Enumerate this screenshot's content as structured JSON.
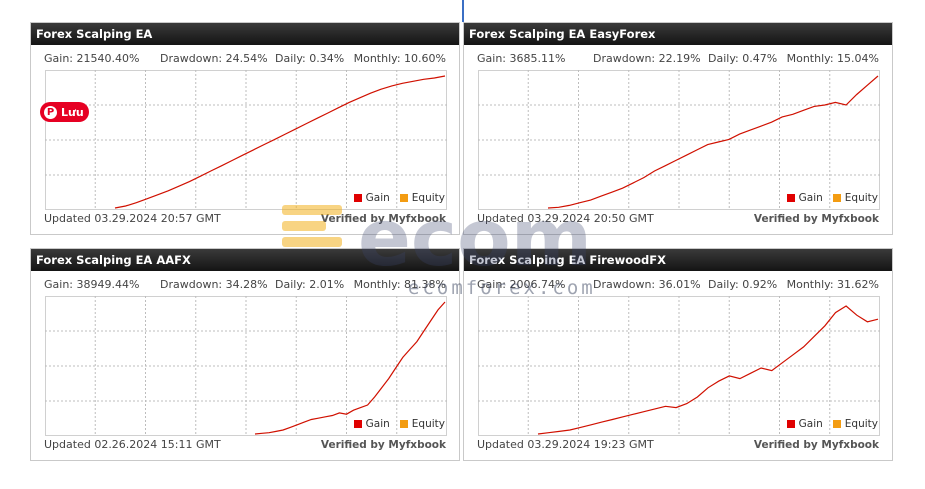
{
  "widgets": [
    {
      "title": "Forex Scalping EA",
      "gain": "Gain: 21540.40%",
      "drawdown": "Drawdown: 24.54%",
      "daily": "Daily: 0.34%",
      "monthly": "Monthly: 10.60%",
      "updated": "Updated 03.29.2024 20:57 GMT",
      "verified": "Verified by Myfxbook"
    },
    {
      "title": "Forex Scalping EA EasyForex",
      "gain": "Gain: 3685.11%",
      "drawdown": "Drawdown: 22.19%",
      "daily": "Daily: 0.47%",
      "monthly": "Monthly: 15.04%",
      "updated": "Updated 03.29.2024 20:50 GMT",
      "verified": "Verified by Myfxbook"
    },
    {
      "title": "Forex Scalping EA AAFX",
      "gain": "Gain: 38949.44%",
      "drawdown": "Drawdown: 34.28%",
      "daily": "Daily: 2.01%",
      "monthly": "Monthly: 81.38%",
      "updated": "Updated 02.26.2024 15:11 GMT",
      "verified": "Verified by Myfxbook"
    },
    {
      "title": "Forex Scalping EA FirewoodFX",
      "gain": "Gain: 2006.74%",
      "drawdown": "Drawdown: 36.01%",
      "daily": "Daily: 0.92%",
      "monthly": "Monthly: 31.62%",
      "updated": "Updated 03.29.2024 19:23 GMT",
      "verified": "Verified by Myfxbook"
    }
  ],
  "legend": {
    "gain": "Gain",
    "equity": "Equity"
  },
  "colors": {
    "gain": "#e00000",
    "equity": "#f39c12",
    "line": "#d01000",
    "grid": "#bdbdbd"
  },
  "pin": {
    "label": "Lưu",
    "icon": "pinterest-icon"
  },
  "watermark": {
    "text": "ecomforex.com"
  },
  "chart_data": [
    {
      "type": "line",
      "title": "Forex Scalping EA",
      "series": [
        {
          "name": "Gain",
          "values": [
            0,
            1.5,
            4,
            7,
            10,
            13,
            16.5,
            20,
            24,
            28,
            32,
            36,
            40,
            44,
            48,
            52,
            56,
            60,
            64,
            68,
            72,
            76,
            80,
            83.5,
            87,
            90,
            92.5,
            94.5,
            96,
            97.5,
            98.5,
            100
          ]
        }
      ],
      "ylim": [
        0,
        100
      ]
    },
    {
      "type": "line",
      "title": "Forex Scalping EA EasyForex",
      "series": [
        {
          "name": "Gain",
          "values": [
            0,
            0.5,
            2,
            4,
            6,
            9,
            12,
            15,
            19,
            23,
            28,
            32,
            36,
            40,
            44,
            48,
            50,
            52,
            56,
            59,
            62,
            65,
            69,
            71,
            74,
            77,
            78,
            80,
            78,
            86,
            93,
            100
          ]
        }
      ],
      "ylim": [
        0,
        100
      ]
    },
    {
      "type": "line",
      "title": "Forex Scalping EA AAFX",
      "series": [
        {
          "name": "Gain",
          "values": [
            0,
            0.5,
            1,
            2,
            3,
            5,
            7,
            9,
            11,
            12,
            13,
            14,
            16,
            15,
            18,
            20,
            22,
            28,
            35,
            42,
            50,
            58,
            64,
            70,
            78,
            86,
            94,
            100
          ]
        }
      ],
      "ylim": [
        0,
        100
      ]
    },
    {
      "type": "line",
      "title": "Forex Scalping EA FirewoodFX",
      "series": [
        {
          "name": "Gain",
          "values": [
            0,
            1,
            2,
            3,
            5,
            7,
            9,
            11,
            13,
            15,
            17,
            19,
            21,
            20,
            23,
            28,
            35,
            40,
            44,
            42,
            46,
            50,
            48,
            54,
            60,
            66,
            74,
            82,
            92,
            97,
            90,
            85,
            87
          ]
        }
      ],
      "ylim": [
        0,
        100
      ]
    }
  ]
}
